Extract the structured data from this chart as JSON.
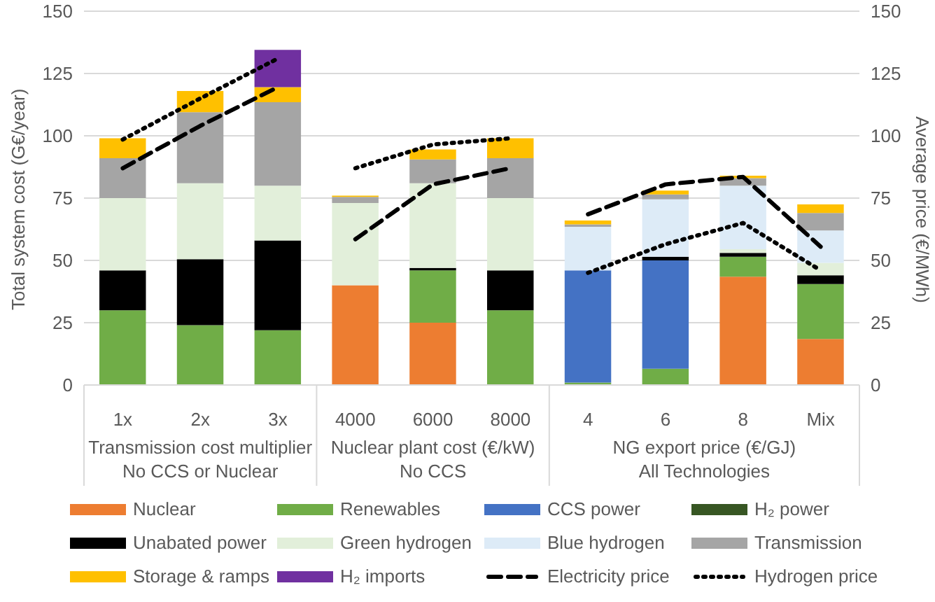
{
  "chart_data": {
    "type": "bar",
    "stacked": true,
    "ylabel": "Total system cost (G€/year)",
    "y2label": "Average price (€/MWh)",
    "categories": [
      "1x",
      "2x",
      "3x",
      "4000",
      "6000",
      "8000",
      "4",
      "6",
      "8",
      "Mix"
    ],
    "annotations": [
      "Transmission cost multiplier\nNo CCS or Nuclear",
      "Nuclear plant cost (€/kW)\nNo CCS",
      "NG export price (€/GJ)\nAll Technologies"
    ],
    "ylim": [
      0,
      150
    ],
    "yticks": [
      0,
      25,
      50,
      75,
      100,
      125,
      150
    ],
    "y2lim": [
      0,
      150
    ],
    "y2ticks": [
      0,
      25,
      50,
      75,
      100,
      125,
      150
    ],
    "grid": "y",
    "legend": "bottom",
    "series": [
      {
        "name": "Nuclear",
        "color": "#ed7d31",
        "values": [
          null,
          null,
          null,
          40,
          25,
          null,
          null,
          null,
          43.5,
          18.5
        ]
      },
      {
        "name": "Renewables",
        "color": "#70ad47",
        "values": [
          30,
          24,
          22,
          null,
          21,
          30,
          1,
          6.5,
          8,
          22
        ]
      },
      {
        "name": "CCS power",
        "color": "#4472c4",
        "values": [
          null,
          null,
          null,
          null,
          null,
          null,
          45,
          43.5,
          null,
          null
        ]
      },
      {
        "name": "H₂ power",
        "color": "#375623",
        "values": [
          null,
          null,
          null,
          null,
          null,
          null,
          null,
          null,
          null,
          null
        ]
      },
      {
        "name": "Unabated power",
        "color": "#000000",
        "values": [
          16,
          26.5,
          36,
          null,
          1,
          16,
          null,
          1.5,
          1.5,
          3.5
        ]
      },
      {
        "name": "Green hydrogen",
        "color": "#e2efda",
        "values": [
          29,
          30.5,
          22,
          33,
          34,
          29,
          null,
          null,
          1.5,
          5
        ]
      },
      {
        "name": "Blue hydrogen",
        "color": "#ddebf7",
        "values": [
          null,
          null,
          null,
          null,
          null,
          null,
          17.5,
          23,
          25.5,
          13
        ]
      },
      {
        "name": "Transmission",
        "color": "#a5a5a5",
        "values": [
          16,
          28.5,
          33.5,
          2.5,
          9.5,
          16,
          1,
          2,
          3,
          7
        ]
      },
      {
        "name": "Storage & ramps",
        "color": "#ffc000",
        "values": [
          8,
          8.5,
          6,
          0.5,
          4,
          8,
          1.5,
          1.5,
          1,
          3.5
        ]
      },
      {
        "name": "H₂ imports",
        "color": "#7030a0",
        "values": [
          null,
          null,
          15,
          null,
          null,
          null,
          null,
          null,
          null,
          null
        ]
      },
      {
        "name": "Electricity price",
        "type": "line",
        "axis": "y2",
        "color": "#000000",
        "line_style": "dashed",
        "marker": "none",
        "values": [
          87,
          104,
          119.5,
          58.5,
          80.5,
          87,
          68.5,
          80.5,
          83.5,
          55.5
        ]
      },
      {
        "name": "Hydrogen price",
        "type": "line",
        "axis": "y2",
        "color": "#000000",
        "line_style": "dotted",
        "marker": "none",
        "values": [
          98.5,
          115,
          131,
          87,
          96.5,
          99,
          45,
          56.5,
          65,
          46
        ]
      }
    ]
  }
}
